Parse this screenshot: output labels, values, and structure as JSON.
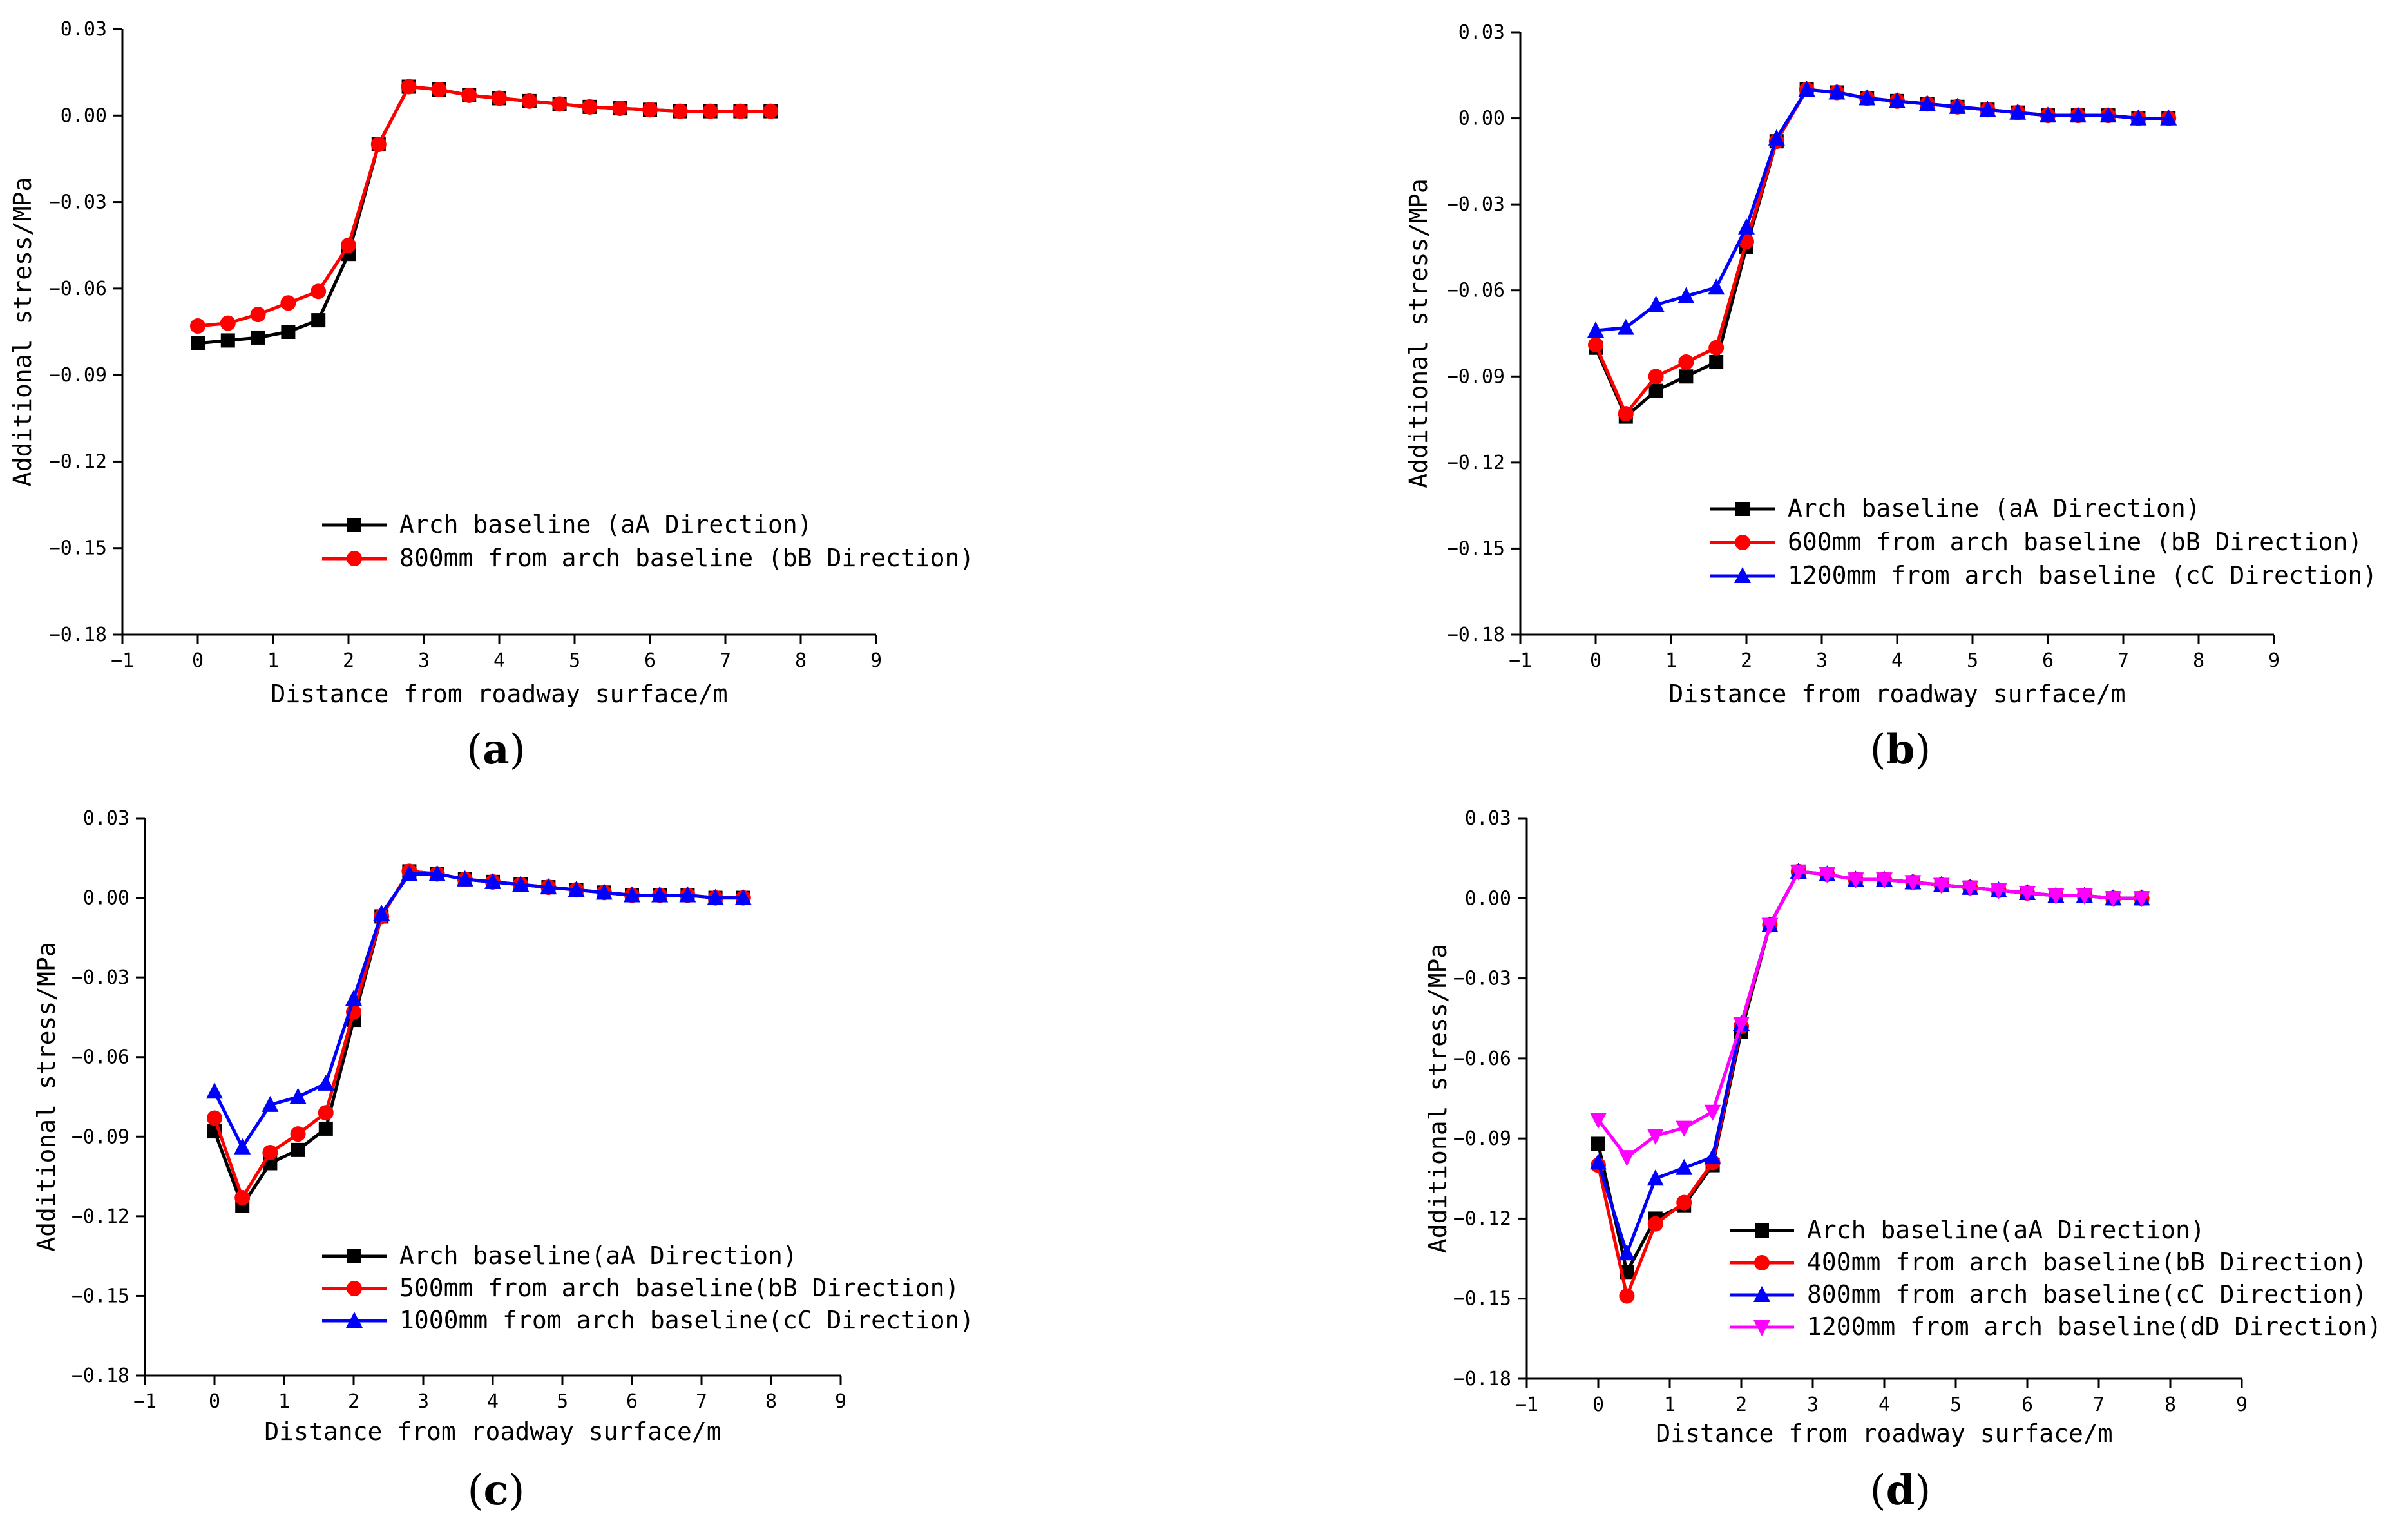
{
  "chart_data": [
    {
      "type": "line",
      "caption": "a",
      "xlabel": "Distance from roadway surface/m",
      "ylabel": "Additional stress/MPa",
      "xlim": [
        -1,
        9
      ],
      "ylim": [
        -0.18,
        0.03
      ],
      "xticks": [
        "-1",
        "0",
        "1",
        "2",
        "3",
        "4",
        "5",
        "6",
        "7",
        "8",
        "9"
      ],
      "yticks": [
        "0.03",
        "0.00",
        "-0.03",
        "-0.06",
        "-0.09",
        "-0.12",
        "-0.15",
        "-0.18"
      ],
      "legend_position": "lower-middle",
      "x": [
        0,
        0.4,
        0.8,
        1.2,
        1.6,
        2.0,
        2.4,
        2.8,
        3.2,
        3.6,
        4.0,
        4.4,
        4.8,
        5.2,
        5.6,
        6.0,
        6.4,
        6.8,
        7.2,
        7.6
      ],
      "series": [
        {
          "name": "Arch baseline (aA Direction)",
          "color": "#000000",
          "marker": "square",
          "values": [
            -0.079,
            -0.078,
            -0.077,
            -0.075,
            -0.071,
            -0.048,
            -0.01,
            0.01,
            0.009,
            0.007,
            0.006,
            0.005,
            0.004,
            0.003,
            0.0025,
            0.002,
            0.0015,
            0.0015,
            0.0015,
            0.0015
          ]
        },
        {
          "name": "800mm from arch baseline (bB Direction)",
          "color": "#ff0000",
          "marker": "circle",
          "values": [
            -0.073,
            -0.072,
            -0.069,
            -0.065,
            -0.061,
            -0.045,
            -0.01,
            0.01,
            0.009,
            0.007,
            0.006,
            0.005,
            0.004,
            0.003,
            0.0025,
            0.002,
            0.0015,
            0.0015,
            0.0015,
            0.0015
          ]
        }
      ]
    },
    {
      "type": "line",
      "caption": "b",
      "xlabel": "Distance from roadway surface/m",
      "ylabel": "Additional stress/MPa",
      "xlim": [
        -1,
        9
      ],
      "ylim": [
        -0.18,
        0.03
      ],
      "xticks": [
        "-1",
        "0",
        "1",
        "2",
        "3",
        "4",
        "5",
        "6",
        "7",
        "8",
        "9"
      ],
      "yticks": [
        "0.03",
        "0.00",
        "-0.03",
        "-0.06",
        "-0.09",
        "-0.12",
        "-0.15",
        "-0.18"
      ],
      "legend_position": "lower-middle",
      "x": [
        0,
        0.4,
        0.8,
        1.2,
        1.6,
        2.0,
        2.4,
        2.8,
        3.2,
        3.6,
        4.0,
        4.4,
        4.8,
        5.2,
        5.6,
        6.0,
        6.4,
        6.8,
        7.2,
        7.6
      ],
      "series": [
        {
          "name": "Arch baseline (aA Direction)",
          "color": "#000000",
          "marker": "square",
          "values": [
            -0.08,
            -0.104,
            -0.095,
            -0.09,
            -0.085,
            -0.045,
            -0.008,
            0.01,
            0.009,
            0.007,
            0.006,
            0.005,
            0.004,
            0.003,
            0.002,
            0.001,
            0.001,
            0.001,
            0.0,
            0.0
          ]
        },
        {
          "name": "600mm from arch baseline (bB Direction)",
          "color": "#ff0000",
          "marker": "circle",
          "values": [
            -0.079,
            -0.103,
            -0.09,
            -0.085,
            -0.08,
            -0.043,
            -0.008,
            0.01,
            0.009,
            0.007,
            0.006,
            0.005,
            0.004,
            0.003,
            0.002,
            0.001,
            0.001,
            0.001,
            0.0,
            0.0
          ]
        },
        {
          "name": "1200mm from arch baseline (cC Direction)",
          "color": "#0000ff",
          "marker": "triangle-up",
          "values": [
            -0.074,
            -0.073,
            -0.065,
            -0.062,
            -0.059,
            -0.038,
            -0.007,
            0.01,
            0.009,
            0.007,
            0.006,
            0.005,
            0.004,
            0.003,
            0.002,
            0.001,
            0.001,
            0.001,
            0.0,
            0.0
          ]
        }
      ]
    },
    {
      "type": "line",
      "caption": "c",
      "xlabel": "Distance from roadway surface/m",
      "ylabel": "Additional stress/MPa",
      "xlim": [
        -1,
        9
      ],
      "ylim": [
        -0.18,
        0.03
      ],
      "xticks": [
        "-1",
        "0",
        "1",
        "2",
        "3",
        "4",
        "5",
        "6",
        "7",
        "8",
        "9"
      ],
      "yticks": [
        "0.03",
        "0.00",
        "-0.03",
        "-0.06",
        "-0.09",
        "-0.12",
        "-0.15",
        "-0.18"
      ],
      "legend_position": "lower-middle",
      "x": [
        0,
        0.4,
        0.8,
        1.2,
        1.6,
        2.0,
        2.4,
        2.8,
        3.2,
        3.6,
        4.0,
        4.4,
        4.8,
        5.2,
        5.6,
        6.0,
        6.4,
        6.8,
        7.2,
        7.6
      ],
      "series": [
        {
          "name": "Arch baseline(aA Direction)",
          "color": "#000000",
          "marker": "square",
          "values": [
            -0.088,
            -0.116,
            -0.1,
            -0.095,
            -0.087,
            -0.046,
            -0.007,
            0.01,
            0.009,
            0.007,
            0.006,
            0.005,
            0.004,
            0.003,
            0.002,
            0.001,
            0.001,
            0.001,
            0.0,
            0.0
          ]
        },
        {
          "name": "500mm from arch baseline(bB Direction)",
          "color": "#ff0000",
          "marker": "circle",
          "values": [
            -0.083,
            -0.113,
            -0.096,
            -0.089,
            -0.081,
            -0.043,
            -0.007,
            0.01,
            0.009,
            0.007,
            0.006,
            0.005,
            0.004,
            0.003,
            0.002,
            0.001,
            0.001,
            0.001,
            0.0,
            0.0
          ]
        },
        {
          "name": "1000mm from arch baseline(cC Direction)",
          "color": "#0000ff",
          "marker": "triangle-up",
          "values": [
            -0.073,
            -0.094,
            -0.078,
            -0.075,
            -0.07,
            -0.038,
            -0.006,
            0.009,
            0.009,
            0.007,
            0.006,
            0.005,
            0.004,
            0.003,
            0.002,
            0.001,
            0.001,
            0.001,
            0.0,
            0.0
          ]
        }
      ]
    },
    {
      "type": "line",
      "caption": "d",
      "xlabel": "Distance from roadway surface/m",
      "ylabel": "Additional stress/MPa",
      "xlim": [
        -1,
        9
      ],
      "ylim": [
        -0.18,
        0.03
      ],
      "xticks": [
        "-1",
        "0",
        "1",
        "2",
        "3",
        "4",
        "5",
        "6",
        "7",
        "8",
        "9"
      ],
      "yticks": [
        "0.03",
        "0.00",
        "-0.03",
        "-0.06",
        "-0.09",
        "-0.12",
        "-0.15",
        "-0.18"
      ],
      "legend_position": "lower-middle",
      "x": [
        0,
        0.4,
        0.8,
        1.2,
        1.6,
        2.0,
        2.4,
        2.8,
        3.2,
        3.6,
        4.0,
        4.4,
        4.8,
        5.2,
        5.6,
        6.0,
        6.4,
        6.8,
        7.2,
        7.6
      ],
      "series": [
        {
          "name": "Arch baseline(aA Direction)",
          "color": "#000000",
          "marker": "square",
          "values": [
            -0.092,
            -0.14,
            -0.12,
            -0.115,
            -0.1,
            -0.05,
            -0.01,
            0.01,
            0.009,
            0.007,
            0.007,
            0.006,
            0.005,
            0.004,
            0.003,
            0.002,
            0.001,
            0.001,
            0.0,
            0.0
          ]
        },
        {
          "name": "400mm from arch baseline(bB Direction)",
          "color": "#ff0000",
          "marker": "circle",
          "values": [
            -0.1,
            -0.149,
            -0.122,
            -0.114,
            -0.099,
            -0.048,
            -0.01,
            0.01,
            0.009,
            0.007,
            0.007,
            0.006,
            0.005,
            0.004,
            0.003,
            0.002,
            0.001,
            0.001,
            0.0,
            0.0
          ]
        },
        {
          "name": "800mm from arch baseline(cC Direction)",
          "color": "#0000ff",
          "marker": "triangle-up",
          "values": [
            -0.099,
            -0.133,
            -0.105,
            -0.101,
            -0.097,
            -0.047,
            -0.01,
            0.01,
            0.009,
            0.007,
            0.007,
            0.006,
            0.005,
            0.004,
            0.003,
            0.002,
            0.001,
            0.001,
            0.0,
            0.0
          ]
        },
        {
          "name": "1200mm from arch baseline(dD Direction)",
          "color": "#ff00ff",
          "marker": "triangle-down",
          "values": [
            -0.083,
            -0.097,
            -0.089,
            -0.086,
            -0.08,
            -0.047,
            -0.01,
            0.01,
            0.009,
            0.007,
            0.007,
            0.006,
            0.005,
            0.004,
            0.003,
            0.002,
            0.001,
            0.001,
            0.0,
            0.0
          ]
        }
      ]
    }
  ]
}
